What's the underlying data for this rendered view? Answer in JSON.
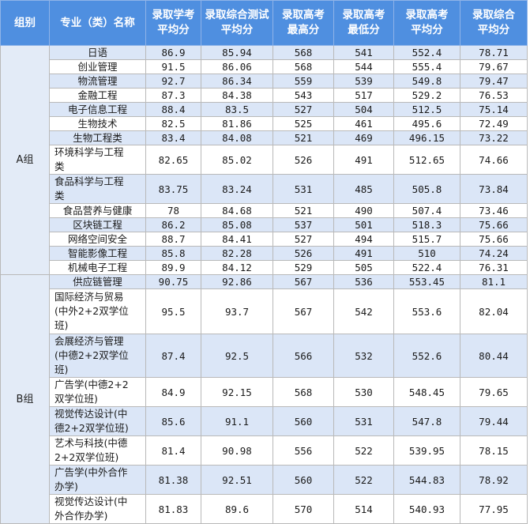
{
  "headers": {
    "group": "组别",
    "major": "专业（类）名称",
    "avg_academic": [
      "录取学考",
      "平均分"
    ],
    "avg_test": [
      "录取综合测试",
      "平均分"
    ],
    "max_gaokao": [
      "录取高考",
      "最高分"
    ],
    "min_gaokao": [
      "录取高考",
      "最低分"
    ],
    "avg_gaokao": [
      "录取高考",
      "平均分"
    ],
    "avg_total": [
      "录取综合",
      "平均分"
    ]
  },
  "groups": [
    {
      "label": "A组",
      "rows": [
        {
          "name": [
            "日语"
          ],
          "avg_academic": "86.9",
          "avg_test": "85.94",
          "max": "568",
          "min": "541",
          "avg_gaokao": "552.4",
          "avg_total": "78.71"
        },
        {
          "name": [
            "创业管理"
          ],
          "avg_academic": "91.5",
          "avg_test": "86.06",
          "max": "568",
          "min": "544",
          "avg_gaokao": "555.4",
          "avg_total": "79.67"
        },
        {
          "name": [
            "物流管理"
          ],
          "avg_academic": "92.7",
          "avg_test": "86.34",
          "max": "559",
          "min": "539",
          "avg_gaokao": "549.8",
          "avg_total": "79.47"
        },
        {
          "name": [
            "金融工程"
          ],
          "avg_academic": "87.3",
          "avg_test": "84.38",
          "max": "543",
          "min": "517",
          "avg_gaokao": "529.2",
          "avg_total": "76.53"
        },
        {
          "name": [
            "电子信息工程"
          ],
          "avg_academic": "88.4",
          "avg_test": "83.5",
          "max": "527",
          "min": "504",
          "avg_gaokao": "512.5",
          "avg_total": "75.14"
        },
        {
          "name": [
            "生物技术"
          ],
          "avg_academic": "82.5",
          "avg_test": "81.86",
          "max": "525",
          "min": "461",
          "avg_gaokao": "495.6",
          "avg_total": "72.49"
        },
        {
          "name": [
            "生物工程类"
          ],
          "avg_academic": "83.4",
          "avg_test": "84.08",
          "max": "521",
          "min": "469",
          "avg_gaokao": "496.15",
          "avg_total": "73.22"
        },
        {
          "name": [
            "环境科学与工程",
            "类"
          ],
          "avg_academic": "82.65",
          "avg_test": "85.02",
          "max": "526",
          "min": "491",
          "avg_gaokao": "512.65",
          "avg_total": "74.66"
        },
        {
          "name": [
            "食品科学与工程",
            "类"
          ],
          "avg_academic": "83.75",
          "avg_test": "83.24",
          "max": "531",
          "min": "485",
          "avg_gaokao": "505.8",
          "avg_total": "73.84"
        },
        {
          "name": [
            "食品营养与健康"
          ],
          "avg_academic": "78",
          "avg_test": "84.68",
          "max": "521",
          "min": "490",
          "avg_gaokao": "507.4",
          "avg_total": "73.46"
        },
        {
          "name": [
            "区块链工程"
          ],
          "avg_academic": "86.2",
          "avg_test": "85.08",
          "max": "537",
          "min": "501",
          "avg_gaokao": "518.3",
          "avg_total": "75.66"
        },
        {
          "name": [
            "网络空间安全"
          ],
          "avg_academic": "88.7",
          "avg_test": "84.41",
          "max": "527",
          "min": "494",
          "avg_gaokao": "515.7",
          "avg_total": "75.66"
        },
        {
          "name": [
            "智能影像工程"
          ],
          "avg_academic": "85.8",
          "avg_test": "82.28",
          "max": "526",
          "min": "491",
          "avg_gaokao": "510",
          "avg_total": "74.24"
        },
        {
          "name": [
            "机械电子工程"
          ],
          "avg_academic": "89.9",
          "avg_test": "84.12",
          "max": "529",
          "min": "505",
          "avg_gaokao": "522.4",
          "avg_total": "76.31"
        }
      ]
    },
    {
      "label": "B组",
      "rows": [
        {
          "name": [
            "供应链管理"
          ],
          "avg_academic": "90.75",
          "avg_test": "92.86",
          "max": "567",
          "min": "536",
          "avg_gaokao": "553.45",
          "avg_total": "81.1"
        },
        {
          "name": [
            "国际经济与贸易",
            "(中外2+2双学位",
            "班)"
          ],
          "avg_academic": "95.5",
          "avg_test": "93.7",
          "max": "567",
          "min": "542",
          "avg_gaokao": "553.6",
          "avg_total": "82.04"
        },
        {
          "name": [
            "会展经济与管理",
            "(中德2+2双学位",
            "班)"
          ],
          "avg_academic": "87.4",
          "avg_test": "92.5",
          "max": "566",
          "min": "532",
          "avg_gaokao": "552.6",
          "avg_total": "80.44"
        },
        {
          "name": [
            "广告学(中德2+2",
            "双学位班)"
          ],
          "avg_academic": "84.9",
          "avg_test": "92.15",
          "max": "568",
          "min": "530",
          "avg_gaokao": "548.45",
          "avg_total": "79.65"
        },
        {
          "name": [
            "视觉传达设计(中",
            "德2+2双学位班)"
          ],
          "avg_academic": "85.6",
          "avg_test": "91.1",
          "max": "560",
          "min": "531",
          "avg_gaokao": "547.8",
          "avg_total": "79.44"
        },
        {
          "name": [
            "艺术与科技(中德",
            "2+2双学位班)"
          ],
          "avg_academic": "81.4",
          "avg_test": "90.98",
          "max": "556",
          "min": "522",
          "avg_gaokao": "539.95",
          "avg_total": "78.15"
        },
        {
          "name": [
            "广告学(中外合作",
            "办学)"
          ],
          "avg_academic": "81.38",
          "avg_test": "92.51",
          "max": "560",
          "min": "522",
          "avg_gaokao": "544.83",
          "avg_total": "78.92"
        },
        {
          "name": [
            "视觉传达设计(中",
            "外合作办学)"
          ],
          "avg_academic": "81.83",
          "avg_test": "89.6",
          "max": "570",
          "min": "514",
          "avg_gaokao": "540.93",
          "avg_total": "77.95"
        }
      ]
    }
  ]
}
